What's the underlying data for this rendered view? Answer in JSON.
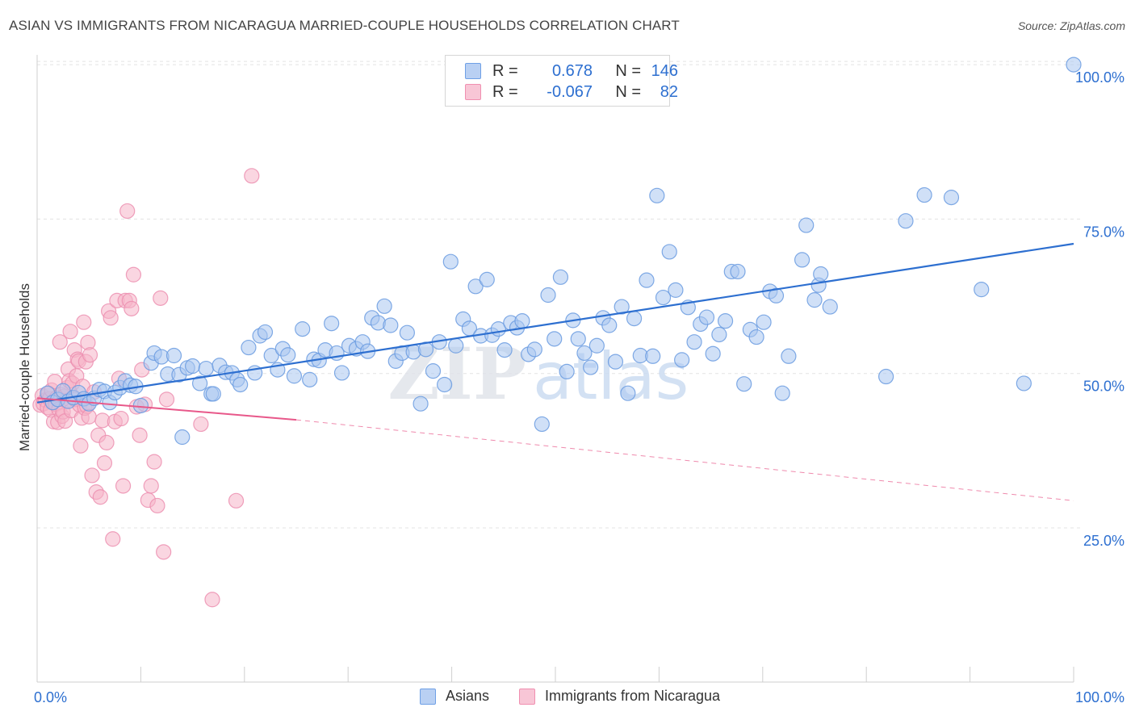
{
  "title": "ASIAN VS IMMIGRANTS FROM NICARAGUA MARRIED-COUPLE HOUSEHOLDS CORRELATION CHART",
  "source": "Source: ZipAtlas.com",
  "watermark": {
    "part1": "ZIP",
    "part2": "atlas"
  },
  "legend": {
    "rows": [
      {
        "r_label": "R =",
        "r_value": "0.678",
        "n_label": "N =",
        "n_value": "146",
        "color": "#6fa0e6"
      },
      {
        "r_label": "R =",
        "r_value": "-0.067",
        "n_label": "N =",
        "n_value": "82",
        "color": "#f08fb0"
      }
    ]
  },
  "bottom_legend": {
    "asians": "Asians",
    "nicaragua": "Immigrants from Nicaragua"
  },
  "colors": {
    "blue": "#2d6fd0",
    "blue_fill": "#a9c6f0",
    "pink": "#e8588a",
    "pink_fill": "#f6b4c9",
    "grid": "#e3e3e3",
    "axis_label": "#2d6fd0"
  },
  "chart_data": {
    "type": "scatter",
    "title": "ASIAN VS IMMIGRANTS FROM NICARAGUA MARRIED-COUPLE HOUSEHOLDS CORRELATION CHART",
    "xlabel": "",
    "ylabel": "Married-couple Households",
    "xlim": [
      0,
      100
    ],
    "ylim": [
      0,
      100
    ],
    "x_tick_labels": [
      "0.0%",
      "100.0%"
    ],
    "y_tick_labels": [
      "25.0%",
      "50.0%",
      "75.0%",
      "100.0%"
    ],
    "y_ticks": [
      25,
      50,
      75,
      100
    ],
    "grid": true,
    "legend_position": "top-center",
    "series": [
      {
        "name": "Asians",
        "r": 0.678,
        "n": 146,
        "trend": {
          "x": [
            0,
            100
          ],
          "y": [
            45.3,
            71.0
          ],
          "style": "solid"
        },
        "points": [
          [
            1,
            46.8
          ],
          [
            1.5,
            45.3
          ],
          [
            2,
            45.8
          ],
          [
            2.5,
            47.2
          ],
          [
            3,
            45.5
          ],
          [
            3.5,
            46.1
          ],
          [
            4,
            46.9
          ],
          [
            4.5,
            45.9
          ],
          [
            5,
            45.1
          ],
          [
            5.5,
            46.0
          ],
          [
            6,
            47.4
          ],
          [
            6.5,
            47.1
          ],
          [
            7,
            45.3
          ],
          [
            7.5,
            46.9
          ],
          [
            8,
            47.7
          ],
          [
            8.5,
            48.8
          ],
          [
            9,
            48.1
          ],
          [
            9.5,
            47.9
          ],
          [
            10,
            44.8
          ],
          [
            11,
            51.7
          ],
          [
            11.3,
            53.3
          ],
          [
            12,
            52.7
          ],
          [
            12.6,
            49.9
          ],
          [
            13.2,
            52.9
          ],
          [
            13.7,
            49.8
          ],
          [
            14,
            39.7
          ],
          [
            14.5,
            50.9
          ],
          [
            15,
            51.2
          ],
          [
            15.7,
            48.4
          ],
          [
            16.3,
            50.8
          ],
          [
            16.8,
            46.7
          ],
          [
            17,
            46.7
          ],
          [
            17.6,
            51.3
          ],
          [
            18.2,
            50.2
          ],
          [
            18.8,
            50.1
          ],
          [
            19.3,
            49.0
          ],
          [
            19.6,
            48.2
          ],
          [
            20.4,
            54.2
          ],
          [
            21,
            50.1
          ],
          [
            21.5,
            56.1
          ],
          [
            22,
            56.7
          ],
          [
            22.6,
            52.9
          ],
          [
            23.2,
            50.6
          ],
          [
            23.7,
            54.0
          ],
          [
            24.2,
            53.0
          ],
          [
            24.8,
            49.6
          ],
          [
            25.6,
            57.2
          ],
          [
            26.3,
            49.0
          ],
          [
            26.7,
            52.3
          ],
          [
            27.2,
            52.1
          ],
          [
            27.8,
            53.8
          ],
          [
            28.4,
            58.1
          ],
          [
            28.9,
            53.3
          ],
          [
            29.4,
            50.1
          ],
          [
            30.1,
            54.5
          ],
          [
            30.8,
            54.0
          ],
          [
            31.4,
            55.1
          ],
          [
            31.9,
            53.6
          ],
          [
            32.3,
            59.0
          ],
          [
            32.9,
            58.2
          ],
          [
            33.5,
            60.9
          ],
          [
            34.1,
            57.8
          ],
          [
            34.6,
            52.0
          ],
          [
            35.2,
            53.3
          ],
          [
            35.7,
            56.6
          ],
          [
            36.3,
            53.5
          ],
          [
            37.0,
            45.1
          ],
          [
            37.5,
            53.9
          ],
          [
            38.2,
            50.4
          ],
          [
            38.8,
            55.1
          ],
          [
            39.3,
            48.2
          ],
          [
            39.9,
            68.1
          ],
          [
            40.4,
            54.5
          ],
          [
            41.1,
            58.8
          ],
          [
            41.7,
            57.3
          ],
          [
            42.3,
            64.1
          ],
          [
            42.8,
            56.1
          ],
          [
            43.4,
            65.2
          ],
          [
            43.9,
            56.2
          ],
          [
            44.5,
            57.2
          ],
          [
            45.1,
            53.8
          ],
          [
            45.7,
            58.2
          ],
          [
            46.3,
            57.4
          ],
          [
            46.8,
            58.5
          ],
          [
            47.4,
            53.1
          ],
          [
            48.0,
            53.9
          ],
          [
            48.7,
            41.8
          ],
          [
            49.3,
            62.7
          ],
          [
            49.9,
            55.6
          ],
          [
            50.5,
            65.6
          ],
          [
            51.1,
            50.3
          ],
          [
            51.7,
            58.6
          ],
          [
            52.2,
            55.6
          ],
          [
            52.8,
            53.3
          ],
          [
            53.4,
            51.0
          ],
          [
            54.0,
            54.5
          ],
          [
            54.6,
            59.0
          ],
          [
            55.2,
            57.8
          ],
          [
            55.8,
            51.9
          ],
          [
            56.4,
            60.8
          ],
          [
            57.0,
            46.8
          ],
          [
            57.6,
            58.9
          ],
          [
            58.2,
            52.9
          ],
          [
            58.8,
            65.1
          ],
          [
            59.4,
            52.8
          ],
          [
            59.8,
            78.8
          ],
          [
            60.4,
            62.3
          ],
          [
            61.0,
            69.7
          ],
          [
            61.6,
            63.5
          ],
          [
            62.2,
            52.2
          ],
          [
            62.8,
            60.7
          ],
          [
            63.4,
            55.1
          ],
          [
            64.0,
            58.0
          ],
          [
            64.6,
            59.1
          ],
          [
            65.2,
            53.2
          ],
          [
            65.8,
            56.3
          ],
          [
            66.4,
            58.5
          ],
          [
            67.0,
            66.5
          ],
          [
            67.6,
            66.5
          ],
          [
            68.2,
            48.3
          ],
          [
            68.8,
            57.1
          ],
          [
            69.4,
            55.9
          ],
          [
            70.1,
            58.3
          ],
          [
            70.7,
            63.3
          ],
          [
            71.3,
            62.6
          ],
          [
            71.9,
            46.8
          ],
          [
            72.5,
            52.8
          ],
          [
            73.8,
            68.4
          ],
          [
            74.2,
            74.0
          ],
          [
            75.0,
            61.9
          ],
          [
            75.4,
            64.3
          ],
          [
            75.6,
            66.1
          ],
          [
            76.5,
            60.8
          ],
          [
            81.9,
            49.5
          ],
          [
            83.8,
            74.7
          ],
          [
            85.6,
            78.9
          ],
          [
            88.2,
            78.5
          ],
          [
            91.1,
            63.6
          ],
          [
            95.2,
            48.4
          ],
          [
            100.0,
            100.0
          ]
        ]
      },
      {
        "name": "Immigrants from Nicaragua",
        "r": -0.067,
        "n": 82,
        "trend": {
          "x": [
            0,
            25,
            100
          ],
          "y": [
            46.0,
            42.5,
            29.4
          ],
          "style": "solid-then-dashed"
        },
        "points": [
          [
            0.3,
            44.9
          ],
          [
            0.5,
            46.4
          ],
          [
            0.6,
            45.1
          ],
          [
            0.8,
            45.7
          ],
          [
            1.0,
            44.5
          ],
          [
            1.1,
            46.8
          ],
          [
            1.2,
            45.9
          ],
          [
            1.3,
            44.1
          ],
          [
            1.4,
            47.3
          ],
          [
            1.5,
            45.4
          ],
          [
            1.6,
            42.2
          ],
          [
            1.7,
            48.7
          ],
          [
            1.8,
            45.0
          ],
          [
            1.9,
            46.1
          ],
          [
            2.0,
            42.1
          ],
          [
            2.1,
            44.2
          ],
          [
            2.2,
            55.1
          ],
          [
            2.3,
            46.6
          ],
          [
            2.4,
            43.1
          ],
          [
            2.5,
            43.8
          ],
          [
            2.6,
            46.3
          ],
          [
            2.7,
            42.3
          ],
          [
            2.8,
            45.6
          ],
          [
            2.9,
            47.7
          ],
          [
            3.0,
            50.7
          ],
          [
            3.1,
            48.8
          ],
          [
            3.2,
            56.8
          ],
          [
            3.3,
            44.0
          ],
          [
            3.4,
            48.4
          ],
          [
            3.5,
            46.0
          ],
          [
            3.6,
            53.8
          ],
          [
            3.7,
            45.8
          ],
          [
            3.8,
            49.6
          ],
          [
            3.9,
            52.3
          ],
          [
            4.0,
            52.0
          ],
          [
            4.1,
            44.9
          ],
          [
            4.2,
            38.3
          ],
          [
            4.3,
            42.8
          ],
          [
            4.4,
            47.9
          ],
          [
            4.5,
            58.3
          ],
          [
            4.6,
            44.4
          ],
          [
            4.7,
            51.9
          ],
          [
            4.8,
            44.7
          ],
          [
            4.9,
            55.0
          ],
          [
            5.0,
            43.0
          ],
          [
            5.1,
            53.0
          ],
          [
            5.3,
            33.5
          ],
          [
            5.5,
            47.0
          ],
          [
            5.7,
            30.8
          ],
          [
            5.9,
            40.0
          ],
          [
            6.1,
            30.0
          ],
          [
            6.3,
            42.4
          ],
          [
            6.5,
            35.5
          ],
          [
            6.7,
            38.8
          ],
          [
            6.9,
            60.1
          ],
          [
            7.1,
            59.0
          ],
          [
            7.3,
            23.2
          ],
          [
            7.5,
            42.2
          ],
          [
            7.7,
            61.8
          ],
          [
            7.9,
            49.2
          ],
          [
            8.1,
            42.7
          ],
          [
            8.3,
            31.8
          ],
          [
            8.5,
            61.8
          ],
          [
            8.7,
            76.3
          ],
          [
            8.9,
            61.8
          ],
          [
            9.1,
            60.5
          ],
          [
            9.3,
            66.0
          ],
          [
            9.6,
            44.6
          ],
          [
            9.9,
            40.0
          ],
          [
            10.1,
            50.6
          ],
          [
            10.4,
            45.0
          ],
          [
            10.7,
            29.5
          ],
          [
            11.0,
            31.8
          ],
          [
            11.3,
            35.7
          ],
          [
            11.6,
            28.6
          ],
          [
            11.9,
            62.2
          ],
          [
            12.2,
            21.1
          ],
          [
            12.5,
            45.8
          ],
          [
            15.8,
            41.8
          ],
          [
            16.9,
            13.4
          ],
          [
            19.2,
            29.4
          ],
          [
            20.7,
            82.0
          ]
        ]
      }
    ]
  }
}
